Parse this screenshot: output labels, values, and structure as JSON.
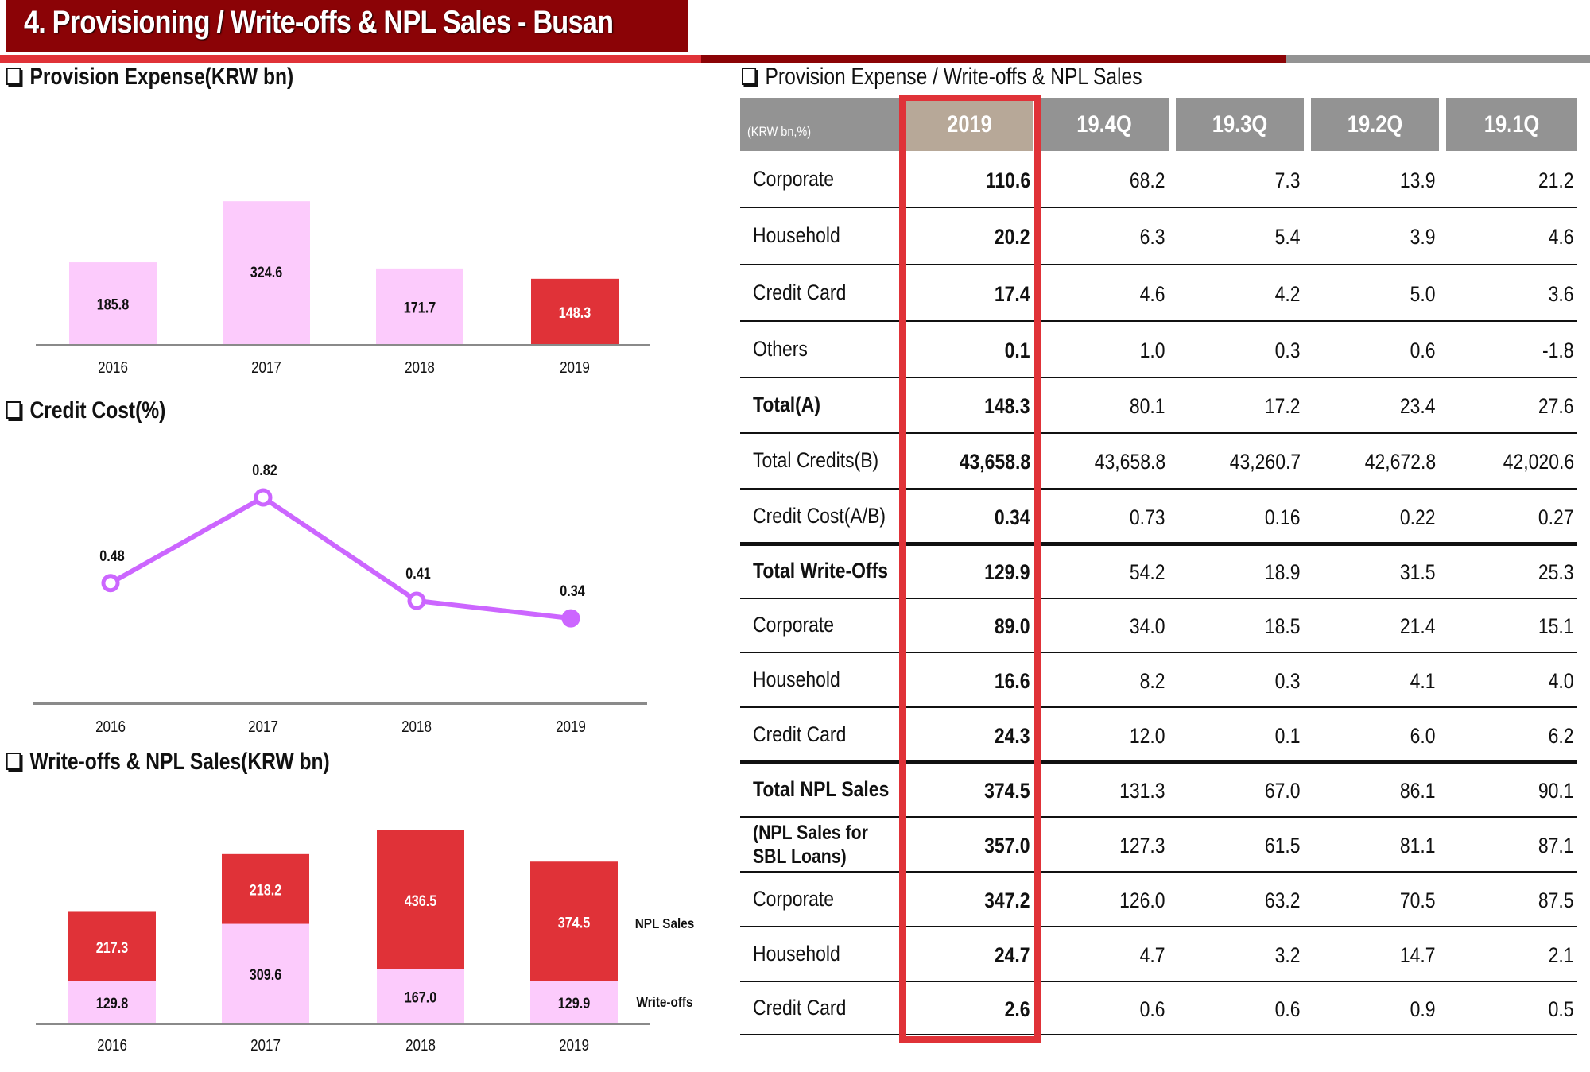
{
  "header": {
    "title": "4. Provisioning / Write-offs & NPL Sales - Busan"
  },
  "colors": {
    "title_bg": "#8B0306",
    "accent_red": "#E03238",
    "pink": "#FCCBFC",
    "grey": "#939393",
    "highlight_header": "#B7A898",
    "line_purple": "#CC66FF"
  },
  "sections": {
    "provision": "Provision Expense(KRW bn)",
    "credit_cost": "Credit Cost(%)",
    "writeoffs": "Write-offs & NPL Sales(KRW bn)",
    "table": "Provision Expense / Write-offs & NPL Sales"
  },
  "chart_data": [
    {
      "type": "bar",
      "title": "Provision Expense(KRW bn)",
      "categories": [
        "2016",
        "2017",
        "2018",
        "2019"
      ],
      "values": [
        185.8,
        324.6,
        171.7,
        148.3
      ],
      "labels": [
        "185.8",
        "324.6",
        "171.7",
        "148.3"
      ],
      "highlight_index": 3,
      "xlabel": "",
      "ylabel": "",
      "ylim": [
        0,
        350
      ],
      "grid": false
    },
    {
      "type": "line",
      "title": "Credit Cost(%)",
      "categories": [
        "2016",
        "2017",
        "2018",
        "2019"
      ],
      "values": [
        0.48,
        0.82,
        0.41,
        0.34
      ],
      "labels": [
        "0.48",
        "0.82",
        "0.41",
        "0.34"
      ],
      "xlabel": "",
      "ylabel": "",
      "grid": false
    },
    {
      "type": "bar",
      "stacked": true,
      "title": "Write-offs & NPL Sales(KRW bn)",
      "categories": [
        "2016",
        "2017",
        "2018",
        "2019"
      ],
      "series": [
        {
          "name": "Write-offs",
          "values": [
            129.8,
            309.6,
            167.0,
            129.9
          ],
          "labels": [
            "129.8",
            "309.6",
            "167.0",
            "129.9"
          ]
        },
        {
          "name": "NPL Sales",
          "values": [
            217.3,
            218.2,
            436.5,
            374.5
          ],
          "labels": [
            "217.3",
            "218.2",
            "436.5",
            "374.5"
          ]
        }
      ],
      "legend": "right",
      "xlabel": "",
      "ylabel": "",
      "grid": false
    },
    {
      "type": "table",
      "unit_label": "(KRW bn,%)",
      "columns": [
        "2019",
        "19.4Q",
        "19.3Q",
        "19.2Q",
        "19.1Q"
      ],
      "rows": [
        {
          "label": "Corporate",
          "bold": false,
          "values": [
            "110.6",
            "68.2",
            "7.3",
            "13.9",
            "21.2"
          ]
        },
        {
          "label": "Household",
          "bold": false,
          "values": [
            "20.2",
            "6.3",
            "5.4",
            "3.9",
            "4.6"
          ]
        },
        {
          "label": "Credit Card",
          "bold": false,
          "values": [
            "17.4",
            "4.6",
            "4.2",
            "5.0",
            "3.6"
          ]
        },
        {
          "label": "Others",
          "bold": false,
          "values": [
            "0.1",
            "1.0",
            "0.3",
            "0.6",
            "-1.8"
          ]
        },
        {
          "label": "Total(A)",
          "bold": true,
          "values": [
            "148.3",
            "80.1",
            "17.2",
            "23.4",
            "27.6"
          ]
        },
        {
          "label": "Total Credits(B)",
          "bold": false,
          "values": [
            "43,658.8",
            "43,658.8",
            "43,260.7",
            "42,672.8",
            "42,020.6"
          ]
        },
        {
          "label": "Credit Cost(A/B)",
          "bold": false,
          "values": [
            "0.34",
            "0.73",
            "0.16",
            "0.22",
            "0.27"
          ]
        },
        {
          "label": "Total Write-Offs",
          "bold": true,
          "values": [
            "129.9",
            "54.2",
            "18.9",
            "31.5",
            "25.3"
          ]
        },
        {
          "label": "Corporate",
          "bold": false,
          "values": [
            "89.0",
            "34.0",
            "18.5",
            "21.4",
            "15.1"
          ]
        },
        {
          "label": "Household",
          "bold": false,
          "values": [
            "16.6",
            "8.2",
            "0.3",
            "4.1",
            "4.0"
          ]
        },
        {
          "label": "Credit Card",
          "bold": false,
          "values": [
            "24.3",
            "12.0",
            "0.1",
            "6.0",
            "6.2"
          ]
        },
        {
          "label": "Total NPL Sales",
          "bold": true,
          "values": [
            "374.5",
            "131.3",
            "67.0",
            "86.1",
            "90.1"
          ]
        },
        {
          "label": "(NPL Sales for SBL Loans)",
          "label_line1": "(NPL Sales for",
          "label_line2": "SBL Loans)",
          "bold": true,
          "values": [
            "357.0",
            "127.3",
            "61.5",
            "81.1",
            "87.1"
          ]
        },
        {
          "label": "Corporate",
          "bold": false,
          "values": [
            "347.2",
            "126.0",
            "63.2",
            "70.5",
            "87.5"
          ]
        },
        {
          "label": "Household",
          "bold": false,
          "values": [
            "24.7",
            "4.7",
            "3.2",
            "14.7",
            "2.1"
          ]
        },
        {
          "label": "Credit Card",
          "bold": false,
          "values": [
            "2.6",
            "0.6",
            "0.6",
            "0.9",
            "0.5"
          ]
        }
      ]
    }
  ]
}
